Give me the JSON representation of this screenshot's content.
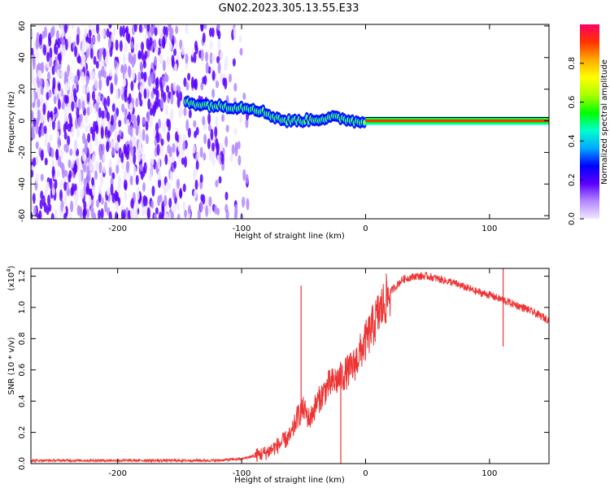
{
  "title": "GN02.2023.305.13.55.E33",
  "colors": {
    "snr_line": "#ee3333",
    "colormap": [
      "#f0e8ff",
      "#b388ff",
      "#5a00ff",
      "#0000ff",
      "#00aaff",
      "#00ffcc",
      "#00ff00",
      "#aaff00",
      "#ffff00",
      "#ffaa00",
      "#ff3300",
      "#ff0066"
    ]
  },
  "chart_data": [
    {
      "type": "heatmap",
      "xlabel": "Height of straight line (km)",
      "ylabel": "Frequency (Hz)",
      "xlim": [
        -270,
        148
      ],
      "ylim": [
        -62,
        61
      ],
      "xticks": [
        -200,
        -100,
        0,
        100
      ],
      "xtick_labels": [
        "-200",
        "-100",
        "0",
        "100"
      ],
      "yticks": [
        -60,
        -40,
        -20,
        0,
        20,
        40,
        60
      ],
      "ytick_labels": [
        "-60",
        "-40",
        "-20",
        "0",
        "20",
        "40",
        "60"
      ],
      "colorbar": {
        "label": "Normalized spectral amplitude",
        "range": [
          0,
          1
        ],
        "ticks": [
          0,
          0.2,
          0.4,
          0.6,
          0.8
        ],
        "tick_labels": [
          "0.0",
          "0.2",
          "0.4",
          "0.6",
          "0.8"
        ]
      },
      "ridge": {
        "description_points_x": [
          -145,
          -130,
          -110,
          -90,
          -75,
          -65,
          -55,
          -40,
          -25,
          -15,
          -5,
          0,
          50,
          100,
          148
        ],
        "description_points_y": [
          12,
          10,
          9,
          8,
          3,
          0,
          0,
          1,
          2,
          1,
          -1,
          0,
          0,
          0,
          0
        ]
      },
      "noise_region_x": [
        -270,
        -95
      ],
      "grid": false
    },
    {
      "type": "line",
      "xlabel": "Height of straight line (km)",
      "ylabel": "SNR (10 * v/v)",
      "yscale_label": "(x10",
      "yscale_exponent": "4",
      "yscale_suffix": ")",
      "xlim": [
        -270,
        148
      ],
      "ylim": [
        0,
        1.25
      ],
      "xticks": [
        -200,
        -100,
        0,
        100
      ],
      "xtick_labels": [
        "-200",
        "-100",
        "0",
        "100"
      ],
      "yticks": [
        0,
        0.2,
        0.4,
        0.6,
        0.8,
        1.0,
        1.2
      ],
      "ytick_labels": [
        "0.0",
        "0.2",
        "0.4",
        "0.6",
        "0.8",
        "1.0",
        "1.2"
      ],
      "series": [
        {
          "x": [
            -270,
            -200,
            -150,
            -120,
            -100,
            -90,
            -80,
            -70,
            -60,
            -55,
            -50,
            -45,
            -40,
            -30,
            -20,
            -10,
            0,
            10,
            20,
            30,
            40,
            50,
            60,
            70,
            80,
            90,
            100,
            110,
            120,
            130,
            140,
            148
          ],
          "y": [
            0.02,
            0.02,
            0.02,
            0.02,
            0.03,
            0.05,
            0.07,
            0.12,
            0.18,
            0.3,
            0.35,
            0.28,
            0.38,
            0.5,
            0.55,
            0.62,
            0.78,
            0.95,
            1.1,
            1.18,
            1.2,
            1.2,
            1.18,
            1.16,
            1.13,
            1.1,
            1.08,
            1.05,
            1.02,
            0.99,
            0.95,
            0.92
          ]
        }
      ],
      "spikes": [
        {
          "x": -52,
          "y": 1.14
        },
        {
          "x": -20,
          "y": 0.0
        },
        {
          "x": 111,
          "y": 1.25
        },
        {
          "x": 111,
          "y": 0.75
        }
      ],
      "grid": false
    }
  ]
}
